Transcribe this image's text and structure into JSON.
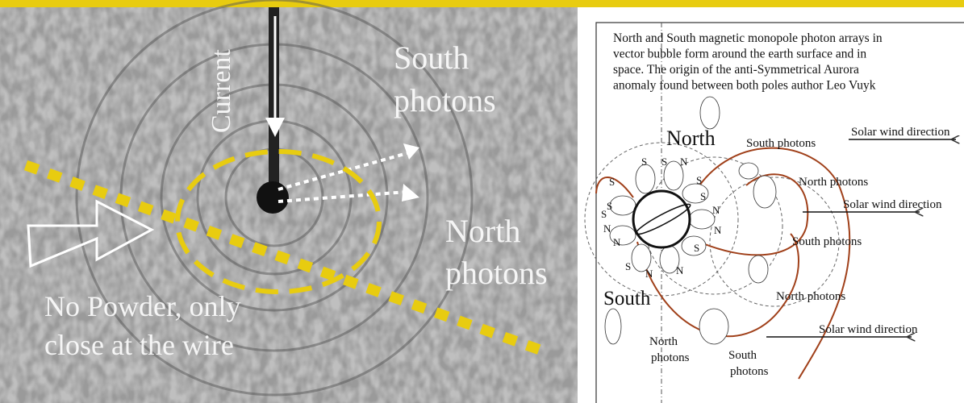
{
  "photo": {
    "current": "Current",
    "south_photons": [
      "South",
      "photons"
    ],
    "north_photons": [
      "North",
      "photons"
    ],
    "note": [
      "No Powder, only",
      "close at the wire"
    ]
  },
  "diagram": {
    "caption": [
      "North and South magnetic monopole photon arrays in",
      "vector bubble form around the earth surface and in",
      "space. The origin of the anti-Symmetrical Aurora",
      "anomaly found between both poles author Leo Vuyk"
    ],
    "north": "North",
    "south": "South",
    "labels": [
      [
        "South photons"
      ],
      [
        "North photons"
      ],
      [
        "Solar wind direction"
      ],
      [
        "Solar wind direction"
      ],
      [
        "South photons"
      ],
      [
        "North photons"
      ],
      [
        "Solar wind direction"
      ],
      [
        "North",
        "photons"
      ],
      [
        "South",
        "photons"
      ]
    ],
    "pole_letters": [
      "S",
      "S",
      "N",
      "S",
      "N",
      "S",
      "N",
      "S",
      "N",
      "N",
      "S",
      "N",
      "S",
      "N",
      "S",
      "S"
    ]
  }
}
